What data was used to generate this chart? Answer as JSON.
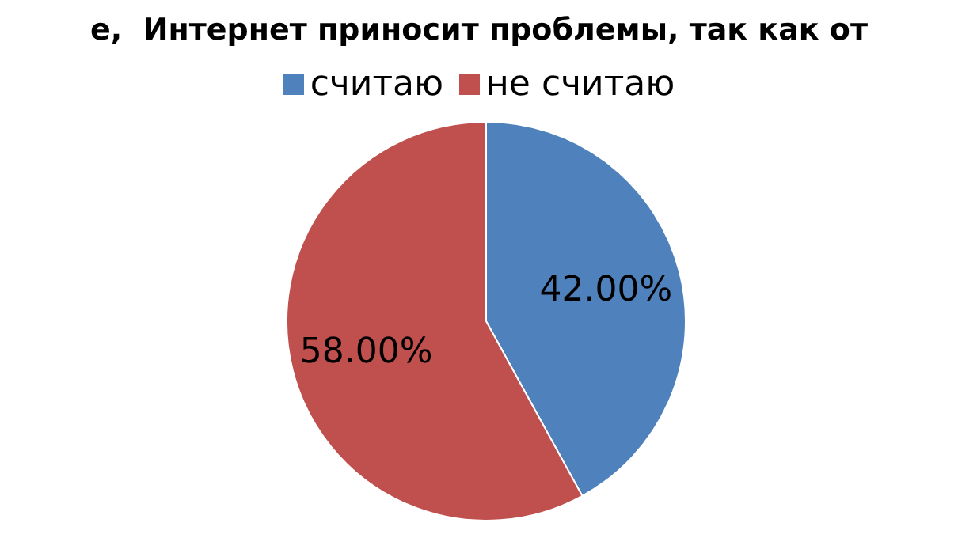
{
  "chart_data": {
    "type": "pie",
    "title": "е,  Интернет приносит проблемы, так как от",
    "categories": [
      "считаю",
      "не считаю"
    ],
    "values": [
      42,
      58
    ],
    "colors": [
      "#4f81bd",
      "#c0504d"
    ],
    "value_labels": [
      "42.00%",
      "58.00%"
    ],
    "legend": "top"
  }
}
